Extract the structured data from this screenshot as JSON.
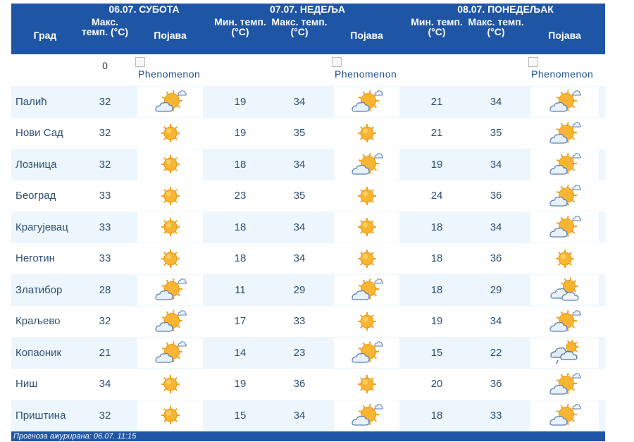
{
  "header": {
    "city_label": "Град",
    "days": [
      {
        "date": "06.07. СУБОТА",
        "cols": [
          "Макс. темп. (°C)",
          "Појава"
        ]
      },
      {
        "date": "07.07. НЕДЕЉА",
        "cols": [
          "Мин. темп. (°C)",
          "Макс. темп. (°C)",
          "Појава"
        ]
      },
      {
        "date": "08.07. ПОНЕДЕЉАК",
        "cols": [
          "Мин. темп. (°C)",
          "Макс. темп. (°C)",
          "Појава"
        ]
      }
    ]
  },
  "zero_row": {
    "value": "0",
    "phen_alt": "Phenomenon"
  },
  "rows": [
    {
      "city": "Палић",
      "d1_max": "32",
      "d1_icon": "partly-cloudy-icon",
      "d2_min": "19",
      "d2_max": "34",
      "d2_icon": "partly-cloudy-icon",
      "d3_min": "21",
      "d3_max": "34",
      "d3_icon": "partly-cloudy-icon"
    },
    {
      "city": "Нови Сад",
      "d1_max": "32",
      "d1_icon": "sun-icon",
      "d2_min": "19",
      "d2_max": "35",
      "d2_icon": "sun-icon",
      "d3_min": "21",
      "d3_max": "35",
      "d3_icon": "partly-cloudy-icon"
    },
    {
      "city": "Лозница",
      "d1_max": "32",
      "d1_icon": "sun-icon",
      "d2_min": "18",
      "d2_max": "34",
      "d2_icon": "partly-cloudy-icon",
      "d3_min": "19",
      "d3_max": "34",
      "d3_icon": "partly-cloudy-icon"
    },
    {
      "city": "Београд",
      "d1_max": "33",
      "d1_icon": "sun-icon",
      "d2_min": "23",
      "d2_max": "35",
      "d2_icon": "sun-icon",
      "d3_min": "24",
      "d3_max": "36",
      "d3_icon": "partly-cloudy-icon"
    },
    {
      "city": "Крагујевац",
      "d1_max": "33",
      "d1_icon": "sun-icon",
      "d2_min": "18",
      "d2_max": "34",
      "d2_icon": "sun-icon",
      "d3_min": "18",
      "d3_max": "34",
      "d3_icon": "partly-cloudy-icon"
    },
    {
      "city": "Неготин",
      "d1_max": "33",
      "d1_icon": "sun-icon",
      "d2_min": "18",
      "d2_max": "34",
      "d2_icon": "sun-icon",
      "d3_min": "18",
      "d3_max": "36",
      "d3_icon": "sun-icon"
    },
    {
      "city": "Златибор",
      "d1_max": "28",
      "d1_icon": "partly-cloudy-icon",
      "d2_min": "11",
      "d2_max": "29",
      "d2_icon": "partly-cloudy-icon",
      "d3_min": "18",
      "d3_max": "29",
      "d3_icon": "mostly-cloudy-icon"
    },
    {
      "city": "Краљево",
      "d1_max": "32",
      "d1_icon": "partly-cloudy-icon",
      "d2_min": "17",
      "d2_max": "33",
      "d2_icon": "sun-icon",
      "d3_min": "19",
      "d3_max": "34",
      "d3_icon": "partly-cloudy-icon"
    },
    {
      "city": "Копаоник",
      "d1_max": "21",
      "d1_icon": "partly-cloudy-icon",
      "d2_min": "14",
      "d2_max": "23",
      "d2_icon": "partly-cloudy-icon",
      "d3_min": "15",
      "d3_max": "22",
      "d3_icon": "cloudy-shower-icon"
    },
    {
      "city": "Ниш",
      "d1_max": "34",
      "d1_icon": "sun-icon",
      "d2_min": "19",
      "d2_max": "36",
      "d2_icon": "sun-icon",
      "d3_min": "20",
      "d3_max": "36",
      "d3_icon": "partly-cloudy-icon"
    },
    {
      "city": "Приштина",
      "d1_max": "32",
      "d1_icon": "sun-icon",
      "d2_min": "15",
      "d2_max": "34",
      "d2_icon": "partly-cloudy-icon",
      "d3_min": "18",
      "d3_max": "33",
      "d3_icon": "partly-cloudy-icon"
    }
  ],
  "footer": {
    "text": "Прогноза ажурирана:  06.07.  11:15"
  },
  "colors": {
    "header_bg": "#1f55a5",
    "row_alt_bg": "#ecf6fc",
    "text": "#2f4f73",
    "sun": "#f5a623",
    "cloud": "#7a9cc6"
  }
}
